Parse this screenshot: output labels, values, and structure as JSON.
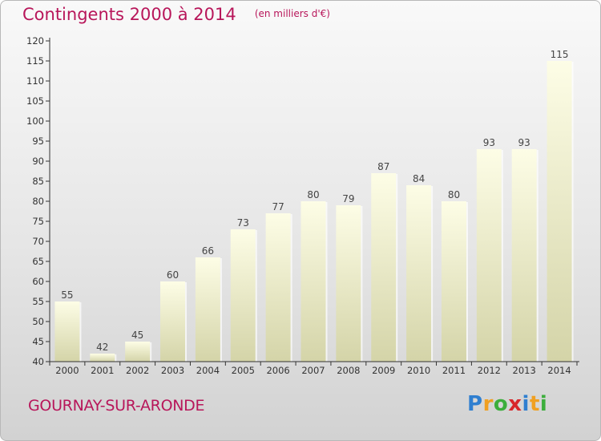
{
  "chart_data": {
    "type": "bar",
    "title": "Contingents 2000 à 2014",
    "subtitle": "(en milliers d'€)",
    "categories": [
      "2000",
      "2001",
      "2002",
      "2003",
      "2004",
      "2005",
      "2006",
      "2007",
      "2008",
      "2009",
      "2010",
      "2011",
      "2012",
      "2013",
      "2014"
    ],
    "values": [
      55,
      42,
      45,
      60,
      66,
      73,
      77,
      80,
      79,
      87,
      84,
      80,
      93,
      93,
      115
    ],
    "data_labels": [
      "55",
      "42",
      "45",
      "60",
      "66",
      "73",
      "77",
      "80",
      "79",
      "87",
      "84",
      "80",
      "93",
      "93",
      "115"
    ],
    "ylim": [
      40,
      120
    ],
    "y_ticks": [
      40,
      45,
      50,
      55,
      60,
      65,
      70,
      75,
      80,
      85,
      90,
      95,
      100,
      105,
      110,
      115,
      120
    ],
    "grid": false,
    "bar_color": "#f6f6d0"
  },
  "footer": {
    "commune": "GOURNAY-SUR-ARONDE",
    "brand_letters": [
      "P",
      "r",
      "o",
      "x",
      "i",
      "t",
      "i"
    ],
    "brand_colors": [
      "#2f7fd0",
      "#f0a022",
      "#3cae3c",
      "#d8262a",
      "#2f7fd0",
      "#f0a022",
      "#3cae3c"
    ]
  },
  "colors": {
    "accent": "#b8165a",
    "axis": "#333333"
  }
}
